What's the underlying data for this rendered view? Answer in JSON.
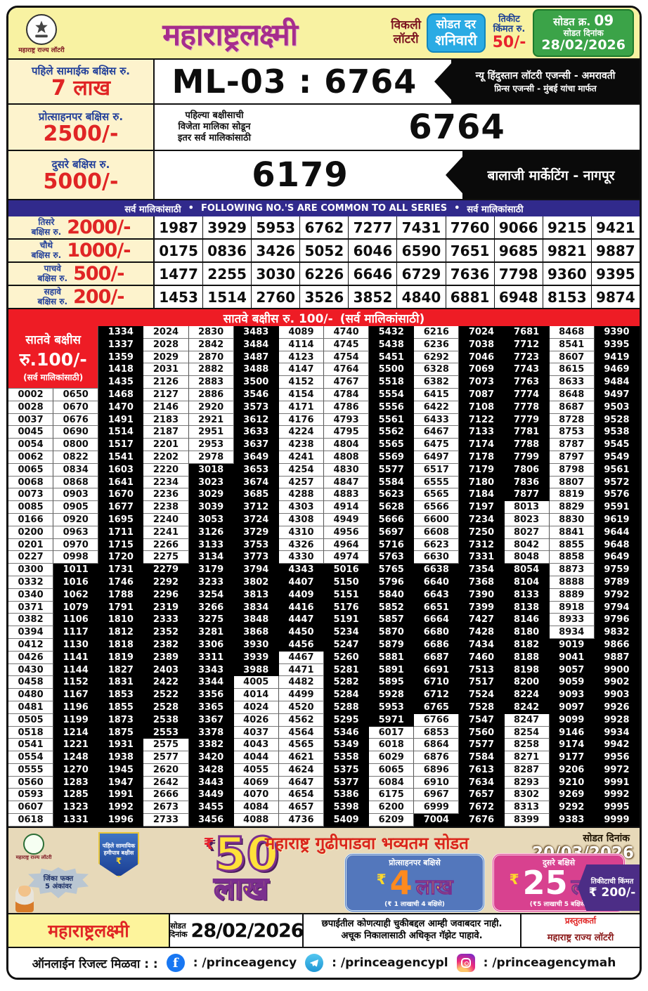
{
  "header": {
    "emblem_caption": "महाराष्ट्र राज्य लॉटरी",
    "title": "महाराष्ट्रलक्ष्मी",
    "weekly_line1": "विकली",
    "weekly_line2": "लॉटरी",
    "day_box_line1": "सोडत दर",
    "day_box_line2": "शनिवारी",
    "ticket_label_line1": "तिकीट",
    "ticket_label_line2": "किंमत रु.",
    "ticket_price": "50/-",
    "draw_no_label": "सोडत क्र.",
    "draw_no": "09",
    "draw_date_label": "सोडत दिनांक",
    "draw_date": "28/02/2026"
  },
  "first_prize": {
    "label": "पहिले सामाईक बक्षिस रु.",
    "amount": "7 लाख",
    "winning_number": "ML-03 : 6764",
    "agent_line1": "न्यू हिंदुस्तान लॉटरी एजन्सी - अमरावती",
    "agent_line2": "प्रिन्स एजन्सी - मुंबई यांचा मार्फत"
  },
  "consolation_prize": {
    "label": "प्रोत्साहनपर बक्षिस रु.",
    "amount": "2500/-",
    "note_line1": "पहिल्या बक्षीसाची",
    "note_line2": "विजेता मालिका सोडून",
    "note_line3": "इतर सर्व मालिकांसाठी",
    "winning_number": "6764"
  },
  "second_prize": {
    "label": "दुसरे बक्षिस रु.",
    "amount": "5000/-",
    "winning_number": "6179",
    "agent": "बालाजी मार्केटिंग - नागपूर"
  },
  "common_bar": {
    "left": "सर्व मालिकांसाठी",
    "center": "FOLLOWING NO.'S ARE COMMON TO ALL SERIES",
    "right": "सर्व मालिकांसाठी",
    "bullet": "•"
  },
  "tiers": [
    {
      "label_line1": "तिसरे",
      "label_line2": "बक्षिस रु.",
      "amount": "2000/-",
      "numbers": [
        "1987",
        "3929",
        "5953",
        "6762",
        "7277",
        "7431",
        "7760",
        "9066",
        "9215",
        "9421"
      ]
    },
    {
      "label_line1": "चौथे",
      "label_line2": "बक्षिस रु.",
      "amount": "1000/-",
      "numbers": [
        "0175",
        "0836",
        "3426",
        "5052",
        "6046",
        "6590",
        "7651",
        "9685",
        "9821",
        "9887"
      ]
    },
    {
      "label_line1": "पाचवे",
      "label_line2": "बक्षिस रु.",
      "amount": "500/-",
      "numbers": [
        "1477",
        "2255",
        "3030",
        "6226",
        "6646",
        "6729",
        "7636",
        "7798",
        "9360",
        "9395"
      ]
    },
    {
      "label_line1": "सहावे",
      "label_line2": "बक्षिस रु.",
      "amount": "200/-",
      "numbers": [
        "1453",
        "1514",
        "2760",
        "3526",
        "3852",
        "4840",
        "6881",
        "6948",
        "8153",
        "9874"
      ]
    }
  ],
  "seventh_prize": {
    "bar_left": "सातवे बक्षीस रु. 100/-",
    "bar_right": "(सर्व मालिकांसाठी)",
    "side_label_line1": "सातवे बक्षीस",
    "side_label_line2": "रु.100/-",
    "side_label_line3": "(सर्व मालिकांसाठी)",
    "black_ranges": {
      "1": [
        [
          19,
          39
        ]
      ],
      "2": [
        [
          0,
          39
        ]
      ],
      "3": [
        [
          19,
          32
        ]
      ],
      "4": [
        [
          11,
          39
        ]
      ],
      "5": [
        [
          0,
          27
        ]
      ],
      "6": [
        [
          19,
          25
        ]
      ],
      "7": [
        [
          19,
          39
        ]
      ],
      "8": [
        [
          0,
          31
        ]
      ],
      "9": [
        [
          19,
          30
        ],
        [
          39,
          39
        ]
      ],
      "10": [
        [
          0,
          39
        ]
      ],
      "11": [
        [
          0,
          13
        ],
        [
          19,
          30
        ]
      ],
      "12": [
        [
          25,
          39
        ]
      ],
      "13": [
        [
          0,
          39
        ]
      ]
    },
    "rows": [
      [
        "1334",
        "2024",
        "2830",
        "3483",
        "4089",
        "4740",
        "5432",
        "6216",
        "7024",
        "7681",
        "8468",
        "9390"
      ],
      [
        "1337",
        "2028",
        "2842",
        "3484",
        "4114",
        "4745",
        "5438",
        "6236",
        "7038",
        "7712",
        "8541",
        "9395"
      ],
      [
        "1359",
        "2029",
        "2870",
        "3487",
        "4123",
        "4754",
        "5451",
        "6292",
        "7046",
        "7723",
        "8607",
        "9419"
      ],
      [
        "1418",
        "2031",
        "2882",
        "3488",
        "4147",
        "4764",
        "5500",
        "6328",
        "7069",
        "7743",
        "8615",
        "9469"
      ],
      [
        "1435",
        "2126",
        "2883",
        "3500",
        "4152",
        "4767",
        "5518",
        "6382",
        "7073",
        "7763",
        "8633",
        "9484"
      ],
      [
        "0002",
        "0650",
        "1468",
        "2127",
        "2886",
        "3546",
        "4154",
        "4784",
        "5554",
        "6415",
        "7087",
        "7774",
        "8648",
        "9497"
      ],
      [
        "0028",
        "0670",
        "1470",
        "2146",
        "2920",
        "3573",
        "4171",
        "4786",
        "5556",
        "6422",
        "7108",
        "7778",
        "8687",
        "9503"
      ],
      [
        "0037",
        "0676",
        "1491",
        "2183",
        "2921",
        "3612",
        "4176",
        "4793",
        "5561",
        "6433",
        "7122",
        "7779",
        "8728",
        "9528"
      ],
      [
        "0045",
        "0690",
        "1514",
        "2187",
        "2951",
        "3633",
        "4224",
        "4795",
        "5562",
        "6467",
        "7133",
        "7781",
        "8753",
        "9538"
      ],
      [
        "0054",
        "0800",
        "1517",
        "2201",
        "2953",
        "3637",
        "4238",
        "4804",
        "5565",
        "6475",
        "7174",
        "7788",
        "8787",
        "9545"
      ],
      [
        "0062",
        "0822",
        "1541",
        "2202",
        "2978",
        "3649",
        "4241",
        "4808",
        "5569",
        "6497",
        "7178",
        "7799",
        "8797",
        "9549"
      ],
      [
        "0065",
        "0834",
        "1603",
        "2220",
        "3018",
        "3653",
        "4254",
        "4830",
        "5577",
        "6517",
        "7179",
        "7806",
        "8798",
        "9561"
      ],
      [
        "0068",
        "0868",
        "1641",
        "2234",
        "3023",
        "3674",
        "4257",
        "4847",
        "5584",
        "6555",
        "7180",
        "7836",
        "8807",
        "9572"
      ],
      [
        "0073",
        "0903",
        "1670",
        "2236",
        "3029",
        "3685",
        "4288",
        "4883",
        "5623",
        "6565",
        "7184",
        "7877",
        "8819",
        "9576"
      ],
      [
        "0085",
        "0905",
        "1677",
        "2238",
        "3039",
        "3712",
        "4303",
        "4914",
        "5628",
        "6566",
        "7197",
        "8013",
        "8829",
        "9591"
      ],
      [
        "0166",
        "0920",
        "1695",
        "2240",
        "3053",
        "3724",
        "4308",
        "4949",
        "5666",
        "6600",
        "7234",
        "8023",
        "8830",
        "9619"
      ],
      [
        "0200",
        "0963",
        "1711",
        "2241",
        "3126",
        "3729",
        "4310",
        "4956",
        "5697",
        "6608",
        "7250",
        "8027",
        "8841",
        "9644"
      ],
      [
        "0201",
        "0970",
        "1715",
        "2266",
        "3133",
        "3753",
        "4326",
        "4964",
        "5716",
        "6623",
        "7312",
        "8042",
        "8855",
        "9648"
      ],
      [
        "0227",
        "0998",
        "1720",
        "2275",
        "3134",
        "3773",
        "4330",
        "4974",
        "5763",
        "6630",
        "7331",
        "8048",
        "8858",
        "9649"
      ],
      [
        "0300",
        "1011",
        "1731",
        "2279",
        "3179",
        "3794",
        "4343",
        "5016",
        "5765",
        "6638",
        "7354",
        "8054",
        "8873",
        "9759"
      ],
      [
        "0332",
        "1016",
        "1746",
        "2292",
        "3233",
        "3802",
        "4407",
        "5150",
        "5796",
        "6640",
        "7368",
        "8104",
        "8888",
        "9789"
      ],
      [
        "0340",
        "1062",
        "1788",
        "2296",
        "3254",
        "3813",
        "4409",
        "5151",
        "5840",
        "6643",
        "7390",
        "8133",
        "8889",
        "9792"
      ],
      [
        "0371",
        "1079",
        "1791",
        "2319",
        "3266",
        "3834",
        "4416",
        "5176",
        "5852",
        "6651",
        "7399",
        "8138",
        "8918",
        "9794"
      ],
      [
        "0382",
        "1106",
        "1810",
        "2333",
        "3275",
        "3848",
        "4447",
        "5191",
        "5857",
        "6664",
        "7427",
        "8146",
        "8933",
        "9796"
      ],
      [
        "0394",
        "1117",
        "1812",
        "2352",
        "3281",
        "3868",
        "4450",
        "5234",
        "5870",
        "6680",
        "7428",
        "8180",
        "8934",
        "9832"
      ],
      [
        "0412",
        "1130",
        "1818",
        "2382",
        "3306",
        "3930",
        "4456",
        "5247",
        "5879",
        "6686",
        "7434",
        "8182",
        "9019",
        "9866"
      ],
      [
        "0426",
        "1141",
        "1819",
        "2389",
        "3311",
        "3939",
        "4467",
        "5260",
        "5881",
        "6687",
        "7460",
        "8188",
        "9041",
        "9887"
      ],
      [
        "0430",
        "1144",
        "1827",
        "2403",
        "3343",
        "3988",
        "4471",
        "5281",
        "5891",
        "6691",
        "7513",
        "8198",
        "9057",
        "9900"
      ],
      [
        "0458",
        "1152",
        "1831",
        "2422",
        "3344",
        "4005",
        "4482",
        "5282",
        "5895",
        "6710",
        "7517",
        "8200",
        "9059",
        "9902"
      ],
      [
        "0480",
        "1167",
        "1853",
        "2522",
        "3356",
        "4014",
        "4499",
        "5284",
        "5928",
        "6712",
        "7524",
        "8224",
        "9093",
        "9903"
      ],
      [
        "0481",
        "1196",
        "1855",
        "2528",
        "3365",
        "4024",
        "4520",
        "5288",
        "5953",
        "6765",
        "7528",
        "8242",
        "9097",
        "9926"
      ],
      [
        "0505",
        "1199",
        "1873",
        "2538",
        "3367",
        "4026",
        "4562",
        "5295",
        "5971",
        "6766",
        "7547",
        "8247",
        "9099",
        "9928"
      ],
      [
        "0518",
        "1214",
        "1875",
        "2553",
        "3378",
        "4037",
        "4564",
        "5346",
        "6017",
        "6853",
        "7560",
        "8254",
        "9146",
        "9934"
      ],
      [
        "0541",
        "1221",
        "1931",
        "2575",
        "3382",
        "4043",
        "4565",
        "5349",
        "6018",
        "6864",
        "7577",
        "8258",
        "9174",
        "9942"
      ],
      [
        "0554",
        "1248",
        "1938",
        "2577",
        "3420",
        "4044",
        "4621",
        "5358",
        "6029",
        "6876",
        "7584",
        "8271",
        "9177",
        "9956"
      ],
      [
        "0555",
        "1270",
        "1945",
        "2620",
        "3428",
        "4055",
        "4624",
        "5375",
        "6065",
        "6896",
        "7613",
        "8287",
        "9206",
        "9972"
      ],
      [
        "0560",
        "1283",
        "1947",
        "2642",
        "3443",
        "4069",
        "4647",
        "5377",
        "6084",
        "6910",
        "7634",
        "8293",
        "9210",
        "9991"
      ],
      [
        "0593",
        "1285",
        "1991",
        "2666",
        "3449",
        "4070",
        "4654",
        "5386",
        "6175",
        "6967",
        "7657",
        "8302",
        "9269",
        "9992"
      ],
      [
        "0607",
        "1323",
        "1992",
        "2673",
        "3455",
        "4084",
        "4657",
        "5398",
        "6200",
        "6999",
        "7672",
        "8313",
        "9292",
        "9995"
      ],
      [
        "0618",
        "1331",
        "1996",
        "2733",
        "3456",
        "4088",
        "4736",
        "5409",
        "6209",
        "7004",
        "7676",
        "8399",
        "9383",
        "9999"
      ]
    ]
  },
  "banner": {
    "title": "महाराष्ट्र गुढीपाडवा भव्यतम सोडत",
    "date_label": "सोडत दिनांक",
    "date": "20/03/2026",
    "emblem_caption": "महाराष्ट्र राज्य लॉटरी",
    "star_line1": "जिंका फक्त",
    "star_line2": "5 अंकांवर",
    "shield_text": "पहिले सामायिक हमीपात्र बक्षीस",
    "rupee": "₹",
    "big_amount": "50",
    "big_unit": "लाख",
    "stamp1_top": "प्रोत्साहनपर बक्षिसे",
    "stamp1_amount": "4",
    "stamp1_unit": "लाख",
    "stamp1_bottom": "(₹ 1 लाखाची 4 बक्षिसे)",
    "stamp2_top": "दुसरे बक्षिसे",
    "stamp2_amount": "25",
    "stamp2_unit": "लाख",
    "stamp2_bottom": "(₹5 लाखाची 5 बक्षिसे)",
    "ribbon_line1": "तिकीटाची किंमत",
    "ribbon_line2": "₹ 200/-"
  },
  "bottom": {
    "brand": "महाराष्ट्रलक्ष्मी",
    "date_label_line1": "सोडत",
    "date_label_line2": "दिनांक",
    "date": "28/02/2026",
    "disclaimer_line1": "छपाईतील कोणत्याही चुकीबद्दल आम्ही जवाबदार नाही.",
    "disclaimer_line2": "अचूक निकालासाठी अधिकृत गॅझेट पाहावे.",
    "presenter_label": "प्रस्तुतकर्ता",
    "presenter": "महाराष्ट्र राज्य लॉटरी"
  },
  "social": {
    "label": "ऑनलाईन रिजल्ट मिळवा : :",
    "facebook_handle": ": /princeagency",
    "telegram_handle": ": /princeagencypl",
    "instagram_handle": ": /princeagencymah"
  },
  "colors": {
    "header_yellow": "#f8f2a2",
    "title_magenta": "#a62d8c",
    "day_cyan": "#2aabe4",
    "draw_green": "#3ba348",
    "accent_red": "#e8222d",
    "label_blue": "#23409a",
    "bar_navy": "#312a8c",
    "bar_red": "#ee1c25",
    "banner_beige": "#e7d9b9"
  }
}
